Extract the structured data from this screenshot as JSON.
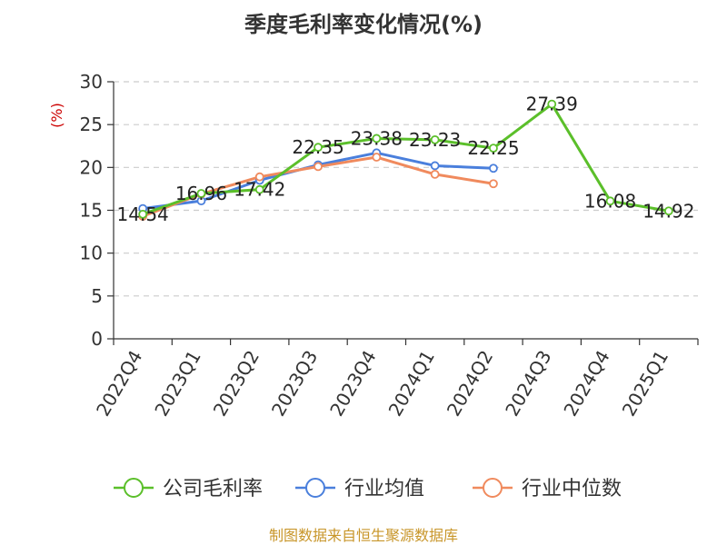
{
  "chart_data": {
    "type": "line",
    "title": "季度毛利率变化情况(%)",
    "ylabel": "(%)",
    "xlabel": "",
    "ylim": [
      0,
      30
    ],
    "yticks": [
      "0",
      "5",
      "10",
      "15",
      "20",
      "25",
      "30"
    ],
    "categories": [
      "2022Q4",
      "2023Q1",
      "2023Q2",
      "2023Q3",
      "2023Q4",
      "2024Q1",
      "2024Q2",
      "2024Q3",
      "2024Q4",
      "2025Q1"
    ],
    "grid": true,
    "legend_position": "bottom",
    "series": [
      {
        "name": "公司毛利率",
        "color": "#5bbf2a",
        "values": [
          14.54,
          16.96,
          17.42,
          22.35,
          23.38,
          23.23,
          22.25,
          27.39,
          16.08,
          14.92
        ],
        "labels": [
          "14.54",
          "16.96",
          "17.42",
          "22.35",
          "23.38",
          "23.23",
          "22.25",
          "27.39",
          "16.08",
          "14.92"
        ]
      },
      {
        "name": "行业均值",
        "color": "#4a7fdc",
        "values": [
          15.2,
          16.1,
          18.5,
          20.3,
          21.7,
          20.2,
          19.9,
          null,
          null,
          null
        ]
      },
      {
        "name": "行业中位数",
        "color": "#f08a5d",
        "values": [
          14.3,
          16.9,
          18.9,
          20.1,
          21.2,
          19.2,
          18.1,
          null,
          null,
          null
        ]
      }
    ]
  },
  "footer": {
    "source": "制图数据来自恒生聚源数据库",
    "source_color": "#c8962a"
  },
  "colors": {
    "unit_label": "#cc0000",
    "axis": "#333333",
    "grid": "#cccccc"
  }
}
